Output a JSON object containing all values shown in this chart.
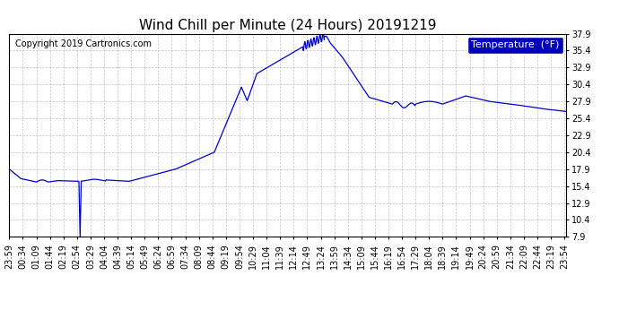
{
  "title": "Wind Chill per Minute (24 Hours) 20191219",
  "copyright": "Copyright 2019 Cartronics.com",
  "legend_label": "Temperature  (°F)",
  "ylabel_ticks": [
    7.9,
    10.4,
    12.9,
    15.4,
    17.9,
    20.4,
    22.9,
    25.4,
    27.9,
    30.4,
    32.9,
    35.4,
    37.9
  ],
  "ymin": 7.9,
  "ymax": 37.9,
  "line_color": "#0000cc",
  "background_color": "#ffffff",
  "grid_color": "#b0b0b0",
  "title_fontsize": 11,
  "copyright_fontsize": 7,
  "tick_fontsize": 7,
  "legend_fontsize": 8,
  "legend_bg": "#0000bb",
  "legend_fg": "#ffffff"
}
